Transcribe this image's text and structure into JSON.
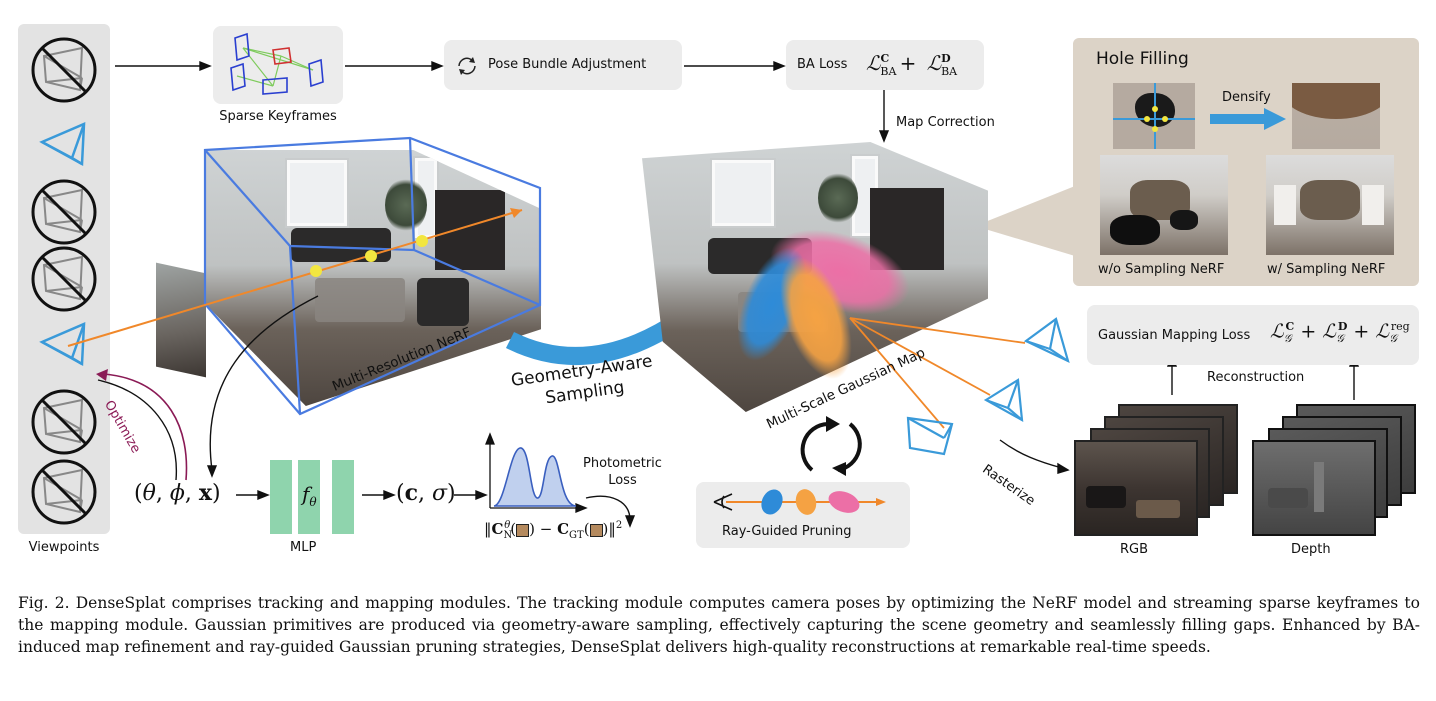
{
  "viewpoints": {
    "label": "Viewpoints"
  },
  "optimize": {
    "label": "Optimize"
  },
  "sparse_keyframes": {
    "label": "Sparse Keyframes"
  },
  "pose_ba": {
    "label": "Pose Bundle Adjustment"
  },
  "ba_loss": {
    "label": "BA Loss"
  },
  "map_correction": {
    "label": "Map Correction"
  },
  "hole_filling": {
    "title": "Hole Filling",
    "densify": "Densify",
    "without": "w/o Sampling NeRF",
    "with": "w/ Sampling NeRF"
  },
  "nerf": {
    "label": "Multi-Resolution NeRF"
  },
  "gaussian_map": {
    "label": "Multi-Scale Gaussian Map"
  },
  "geometry_sampling": {
    "line1": "Geometry-Aware",
    "line2": "Sampling"
  },
  "mlp": {
    "label": "MLP"
  },
  "photometric": {
    "line1": "Photometric",
    "line2": "Loss"
  },
  "ray_pruning": {
    "label": "Ray-Guided Pruning"
  },
  "gaussian_loss": {
    "label": "Gaussian Mapping Loss"
  },
  "reconstruction": {
    "label": "Reconstruction"
  },
  "rasterize": {
    "label": "Rasterize"
  },
  "outputs": {
    "rgb": "RGB",
    "depth": "Depth"
  },
  "caption": {
    "prefix": "Fig. 2.",
    "text": "DenseSplat comprises tracking and mapping modules. The tracking module computes camera poses by optimizing the NeRF model and streaming sparse keyframes to the mapping module. Gaussian primitives are produced via geometry-aware sampling, effectively capturing the scene geometry and seamlessly filling gaps. Enhanced by BA-induced map refinement and ray-guided Gaussian pruning strategies, DenseSplat delivers high-quality reconstructions at remarkable real-time speeds."
  },
  "colors": {
    "camera_blue": "#3a9ad9",
    "ray_orange": "#f0882a",
    "mlp_green": "#8fd4ad",
    "gaussian_pink": "#ec6fa6",
    "gaussian_orange": "#f5a243",
    "gaussian_blue": "#2e8bd8",
    "box_gray": "#ececec",
    "hole_panel": "#dcd3c7",
    "optimize_purple": "#8a1a55"
  }
}
